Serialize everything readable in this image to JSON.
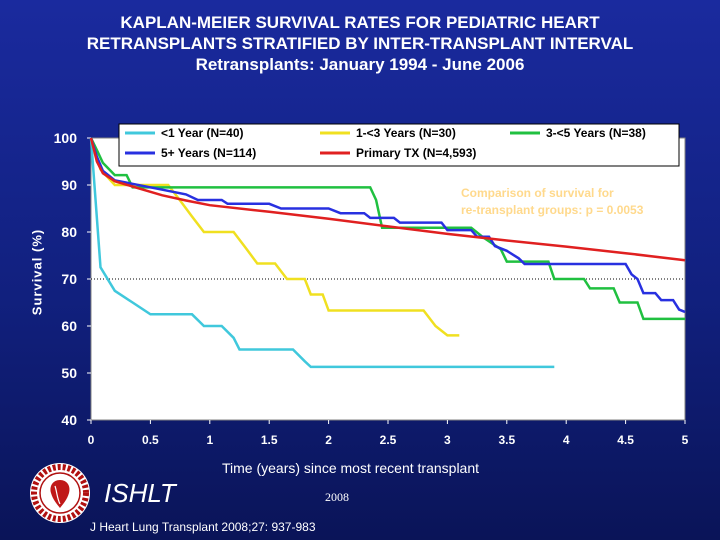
{
  "title": {
    "line1": "KAPLAN-MEIER SURVIVAL RATES FOR PEDIATRIC HEART",
    "line2": "RETRANSPLANTS STRATIFIED BY INTER-TRANSPLANT INTERVAL",
    "line3": "Retransplants: January 1994 - June 2006"
  },
  "chart_data": {
    "type": "line",
    "xlabel": "Time (years) since most recent transplant",
    "ylabel": "Survival (%)",
    "xlim": [
      0,
      5
    ],
    "ylim": [
      40,
      100
    ],
    "xticks": [
      "0",
      "0.5",
      "1",
      "1.5",
      "2",
      "2.5",
      "3",
      "3.5",
      "4",
      "4.5",
      "5"
    ],
    "yticks": [
      "40",
      "50",
      "60",
      "70",
      "80",
      "90",
      "100"
    ],
    "reference_line_y": 70,
    "annotation": {
      "line1": "Comparison of survival for",
      "line2": "re-transplant groups: p = 0.0053",
      "color": "#ffd98c"
    },
    "series": [
      {
        "name": "<1 Year (N=40)",
        "color": "#40c8dc",
        "points": [
          [
            0,
            100
          ],
          [
            0.08,
            72.5
          ],
          [
            0.2,
            67.5
          ],
          [
            0.35,
            65
          ],
          [
            0.5,
            62.5
          ],
          [
            0.85,
            62.5
          ],
          [
            0.95,
            60
          ],
          [
            1.1,
            60
          ],
          [
            1.2,
            57.5
          ],
          [
            1.25,
            55
          ],
          [
            1.7,
            55
          ],
          [
            1.8,
            52.5
          ],
          [
            1.85,
            51.3
          ],
          [
            3.9,
            51.3
          ]
        ]
      },
      {
        "name": "1-<3 Years (N=30)",
        "color": "#f0e020",
        "points": [
          [
            0,
            100
          ],
          [
            0.08,
            93.3
          ],
          [
            0.2,
            90
          ],
          [
            0.65,
            90
          ],
          [
            0.75,
            86.7
          ],
          [
            0.85,
            83.3
          ],
          [
            0.95,
            80
          ],
          [
            1.2,
            80
          ],
          [
            1.3,
            76.7
          ],
          [
            1.4,
            73.3
          ],
          [
            1.55,
            73.3
          ],
          [
            1.65,
            70
          ],
          [
            1.8,
            70
          ],
          [
            1.85,
            66.7
          ],
          [
            1.95,
            66.7
          ],
          [
            2.0,
            63.3
          ],
          [
            2.8,
            63.3
          ],
          [
            2.9,
            60
          ],
          [
            3.0,
            58
          ],
          [
            3.1,
            58
          ]
        ]
      },
      {
        "name": "3-<5 Years (N=38)",
        "color": "#20c040",
        "points": [
          [
            0,
            100
          ],
          [
            0.05,
            97.4
          ],
          [
            0.1,
            94.7
          ],
          [
            0.2,
            92.1
          ],
          [
            0.3,
            92.1
          ],
          [
            0.35,
            89.5
          ],
          [
            0.6,
            89.5
          ],
          [
            0.7,
            89.5
          ],
          [
            2.35,
            89.5
          ],
          [
            2.4,
            86.8
          ],
          [
            2.45,
            80.9
          ],
          [
            3.2,
            80.9
          ],
          [
            3.3,
            78.9
          ],
          [
            3.45,
            76.3
          ],
          [
            3.5,
            73.7
          ],
          [
            3.85,
            73.7
          ],
          [
            3.9,
            70
          ],
          [
            4.15,
            70
          ],
          [
            4.2,
            68
          ],
          [
            4.4,
            68
          ],
          [
            4.45,
            65
          ],
          [
            4.6,
            65
          ],
          [
            4.65,
            61.5
          ],
          [
            5.0,
            61.5
          ]
        ]
      },
      {
        "name": "5+ Years (N=114)",
        "color": "#2830e0",
        "points": [
          [
            0,
            100
          ],
          [
            0.05,
            96
          ],
          [
            0.1,
            93
          ],
          [
            0.2,
            91
          ],
          [
            0.6,
            89
          ],
          [
            0.8,
            88
          ],
          [
            0.9,
            86.8
          ],
          [
            1.1,
            86.8
          ],
          [
            1.15,
            86
          ],
          [
            1.5,
            86
          ],
          [
            1.6,
            85
          ],
          [
            2.0,
            85
          ],
          [
            2.1,
            84
          ],
          [
            2.3,
            84
          ],
          [
            2.35,
            83
          ],
          [
            2.55,
            83
          ],
          [
            2.6,
            82
          ],
          [
            2.95,
            82
          ],
          [
            3.0,
            80.4
          ],
          [
            3.2,
            80.4
          ],
          [
            3.25,
            79
          ],
          [
            3.35,
            79
          ],
          [
            3.4,
            77
          ],
          [
            3.5,
            76
          ],
          [
            3.6,
            74.4
          ],
          [
            3.65,
            73.2
          ],
          [
            4.5,
            73.2
          ],
          [
            4.55,
            71
          ],
          [
            4.6,
            70
          ],
          [
            4.65,
            67
          ],
          [
            4.75,
            67
          ],
          [
            4.8,
            65.5
          ],
          [
            4.9,
            65.5
          ],
          [
            4.95,
            63.5
          ],
          [
            5.0,
            63
          ]
        ]
      },
      {
        "name": "Primary TX (N=4,593)",
        "color": "#e02020",
        "points": [
          [
            0,
            100
          ],
          [
            0.05,
            95
          ],
          [
            0.1,
            92.5
          ],
          [
            0.2,
            90.8
          ],
          [
            0.4,
            89.3
          ],
          [
            0.6,
            87.8
          ],
          [
            0.8,
            86.7
          ],
          [
            1.0,
            85.7
          ],
          [
            1.5,
            84.3
          ],
          [
            2.0,
            82.8
          ],
          [
            2.5,
            81.2
          ],
          [
            3.0,
            79.6
          ],
          [
            3.5,
            78.2
          ],
          [
            4.0,
            76.9
          ],
          [
            4.5,
            75.5
          ],
          [
            5.0,
            74.0
          ]
        ]
      }
    ]
  },
  "footer": {
    "org": "ISHLT",
    "year": "2008",
    "citation": "J Heart Lung Transplant 2008;27: 937-983"
  }
}
